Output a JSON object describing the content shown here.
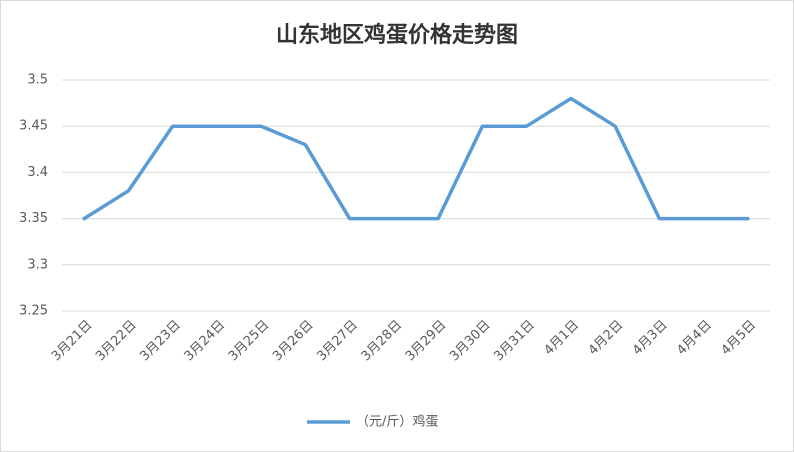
{
  "chart_data": {
    "type": "line",
    "title": "山东地区鸡蛋价格走势图",
    "categories": [
      "3月21日",
      "3月22日",
      "3月23日",
      "3月24日",
      "3月25日",
      "3月26日",
      "3月27日",
      "3月28日",
      "3月29日",
      "3月30日",
      "3月31日",
      "4月1日",
      "4月2日",
      "4月3日",
      "4月4日",
      "4月5日"
    ],
    "series": [
      {
        "name": "（元/斤）鸡蛋",
        "color": "#5b9bd5",
        "values": [
          3.35,
          3.38,
          3.45,
          3.45,
          3.45,
          3.43,
          3.35,
          3.35,
          3.35,
          3.45,
          3.45,
          3.48,
          3.45,
          3.35,
          3.35,
          3.35
        ]
      }
    ],
    "ylim": [
      3.25,
      3.5
    ],
    "yticks": [
      3.25,
      3.3,
      3.35,
      3.4,
      3.45,
      3.5
    ],
    "grid": true,
    "legend": "bottom"
  }
}
